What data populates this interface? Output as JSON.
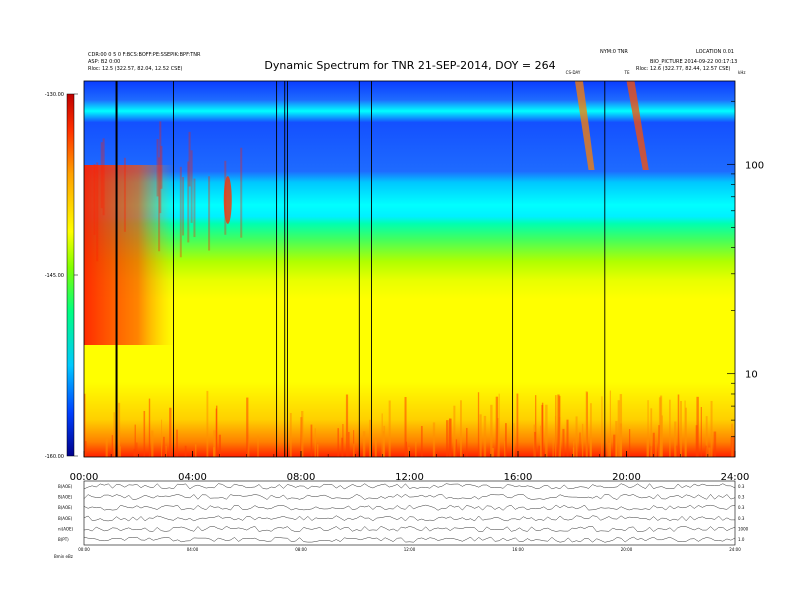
{
  "chart_data": {
    "type": "heatmap",
    "title": "Dynamic Spectrum for TNR 21-SEP-2014, DOY = 264",
    "x_tick_labels": [
      "00:00",
      "04:00",
      "08:00",
      "12:00",
      "16:00",
      "20:00",
      "24:00"
    ],
    "x_range_hours": [
      0,
      24
    ],
    "y_scale": "log",
    "y_tick_labels": [
      "100",
      "10"
    ],
    "y_range": [
      4,
      250
    ],
    "colorbar": {
      "tick_labels": [
        "-130.00",
        "-145.00",
        "-160.00"
      ],
      "range": [
        -160,
        -130
      ],
      "colors": [
        "#00008c",
        "#0040ff",
        "#00c8ff",
        "#00ff80",
        "#80ff00",
        "#ffff00",
        "#ffa000",
        "#ff3000",
        "#c00000"
      ]
    },
    "vertical_marker_hours": [
      1.2,
      3.3,
      7.1,
      7.4,
      7.5,
      10.15,
      10.6,
      15.8,
      19.2
    ],
    "event_labels": [
      "CS-DAY",
      "TE"
    ]
  },
  "header": {
    "left_lines": [
      "CDR:00 0 5 0 F:BCS:BOFF:PE:SSEPIK:BPF:TNR",
      "ASP: B2 0:00",
      "Rloc: 12.5 (322.57, 82.04, 12.52 CSE)"
    ],
    "right_lines": [
      "NYM:0 TNR",
      "LOCATION 0.01",
      "BIO_PICTURE 2014-09-22 00:17:13",
      "Rloc: 12.6 (322.77, 82.44, 12.57 CSE)"
    ],
    "corner_label": "kHz"
  },
  "bottom_panel": {
    "row_labels": [
      "B(AOE)",
      "B(AOE)",
      "B(AOE)",
      "B(AOE)",
      "ni(AOE)",
      "B(PT)"
    ],
    "right_labels": [
      "0.3",
      "0.3",
      "0.3",
      "0.3",
      "1000",
      "1.0"
    ],
    "footer_label": "Bmin  eBz"
  }
}
